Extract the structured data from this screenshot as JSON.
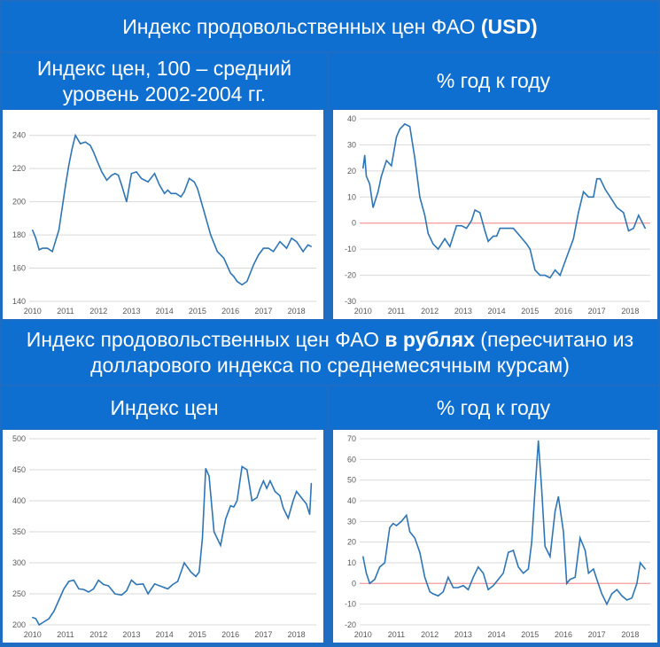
{
  "header": {
    "main_title_plain": "Индекс продовольственных цен ФАО ",
    "main_title_bold": "(USD)",
    "usd_left": "Индекс цен, 100 – средний уровень 2002-2004 гг.",
    "usd_right": "% год к году",
    "rub_title_part1": "Индекс продовольственных цен ФАО ",
    "rub_title_bold": "в рублях",
    "rub_title_part2": " (пересчитано из долларового индекса по среднемесячным курсам)",
    "rub_left": "Индекс цен",
    "rub_right": "% год к году"
  },
  "chart_data": [
    {
      "id": "usd-index",
      "type": "line",
      "x": [
        2010.0,
        2010.1,
        2010.2,
        2010.3,
        2010.45,
        2010.6,
        2010.8,
        2011.0,
        2011.1,
        2011.2,
        2011.3,
        2011.45,
        2011.6,
        2011.75,
        2011.85,
        2011.95,
        2012.1,
        2012.25,
        2012.4,
        2012.5,
        2012.6,
        2012.7,
        2012.85,
        2013.0,
        2013.15,
        2013.3,
        2013.5,
        2013.7,
        2013.85,
        2014.0,
        2014.1,
        2014.2,
        2014.35,
        2014.5,
        2014.6,
        2014.75,
        2014.9,
        2015.0,
        2015.2,
        2015.4,
        2015.6,
        2015.8,
        2016.0,
        2016.1,
        2016.2,
        2016.35,
        2016.5,
        2016.7,
        2016.85,
        2017.0,
        2017.15,
        2017.3,
        2017.5,
        2017.7,
        2017.85,
        2018.0,
        2018.2,
        2018.35,
        2018.45
      ],
      "values": [
        183,
        178,
        171,
        172,
        172,
        170,
        183,
        210,
        222,
        232,
        240,
        235,
        236,
        234,
        230,
        225,
        218,
        213,
        216,
        217,
        216,
        210,
        200,
        217,
        218,
        214,
        212,
        217,
        210,
        205,
        207,
        205,
        205,
        203,
        206,
        214,
        212,
        208,
        194,
        180,
        170,
        166,
        157,
        155,
        152,
        150,
        152,
        162,
        168,
        172,
        172,
        170,
        176,
        172,
        178,
        176,
        170,
        174,
        173
      ],
      "xlim": [
        2009.9,
        2018.6
      ],
      "ylim": [
        140,
        250
      ],
      "yticks": [
        140,
        160,
        180,
        200,
        220,
        240
      ],
      "xticks": [
        2010,
        2011,
        2012,
        2013,
        2014,
        2015,
        2016,
        2017,
        2018
      ]
    },
    {
      "id": "usd-yoy",
      "type": "line",
      "x": [
        2010.0,
        2010.05,
        2010.1,
        2010.2,
        2010.3,
        2010.45,
        2010.55,
        2010.7,
        2010.85,
        2011.0,
        2011.1,
        2011.25,
        2011.4,
        2011.55,
        2011.7,
        2011.85,
        2011.95,
        2012.1,
        2012.25,
        2012.45,
        2012.6,
        2012.8,
        2012.95,
        2013.1,
        2013.25,
        2013.35,
        2013.5,
        2013.65,
        2013.75,
        2013.9,
        2014.0,
        2014.1,
        2014.3,
        2014.5,
        2014.7,
        2014.9,
        2015.0,
        2015.15,
        2015.3,
        2015.45,
        2015.6,
        2015.75,
        2015.9,
        2016.1,
        2016.3,
        2016.45,
        2016.6,
        2016.75,
        2016.9,
        2017.0,
        2017.1,
        2017.25,
        2017.4,
        2017.6,
        2017.8,
        2017.95,
        2018.1,
        2018.25,
        2018.45
      ],
      "values": [
        21,
        26,
        18,
        15,
        6,
        12,
        18,
        24,
        22,
        33,
        36,
        38,
        37,
        25,
        10,
        3,
        -4,
        -8,
        -10,
        -6,
        -9,
        -1,
        -1,
        -2,
        1,
        5,
        4,
        -3,
        -7,
        -5,
        -5,
        -2,
        -2,
        -2,
        -5,
        -8,
        -10,
        -18,
        -20,
        -20,
        -21,
        -18,
        -20,
        -13,
        -6,
        4,
        12,
        10,
        10,
        17,
        17,
        13,
        10,
        6,
        4,
        -3,
        -2,
        3,
        -2
      ],
      "xlim": [
        2009.9,
        2018.6
      ],
      "ylim": [
        -30,
        40
      ],
      "yticks": [
        -30,
        -20,
        -10,
        0,
        10,
        20,
        30,
        40
      ],
      "xticks": [
        2010,
        2011,
        2012,
        2013,
        2014,
        2015,
        2016,
        2017,
        2018
      ]
    },
    {
      "id": "rub-index",
      "type": "line",
      "x": [
        2010.0,
        2010.1,
        2010.2,
        2010.35,
        2010.5,
        2010.65,
        2010.8,
        2010.95,
        2011.1,
        2011.25,
        2011.4,
        2011.55,
        2011.7,
        2011.85,
        2012.0,
        2012.15,
        2012.3,
        2012.5,
        2012.7,
        2012.85,
        2013.0,
        2013.15,
        2013.35,
        2013.5,
        2013.7,
        2013.9,
        2014.1,
        2014.25,
        2014.4,
        2014.6,
        2014.8,
        2014.95,
        2015.05,
        2015.15,
        2015.25,
        2015.35,
        2015.5,
        2015.7,
        2015.85,
        2016.0,
        2016.1,
        2016.2,
        2016.35,
        2016.5,
        2016.65,
        2016.8,
        2016.9,
        2017.0,
        2017.1,
        2017.2,
        2017.35,
        2017.5,
        2017.6,
        2017.75,
        2017.9,
        2018.0,
        2018.15,
        2018.3,
        2018.4,
        2018.45
      ],
      "values": [
        212,
        210,
        200,
        205,
        210,
        222,
        240,
        258,
        270,
        272,
        258,
        257,
        253,
        258,
        272,
        265,
        263,
        250,
        248,
        255,
        272,
        265,
        266,
        250,
        266,
        262,
        258,
        265,
        270,
        300,
        285,
        278,
        285,
        340,
        452,
        440,
        350,
        328,
        370,
        392,
        390,
        400,
        455,
        450,
        400,
        405,
        420,
        432,
        420,
        432,
        415,
        408,
        388,
        372,
        400,
        415,
        405,
        395,
        378,
        428
      ],
      "xlim": [
        2009.9,
        2018.6
      ],
      "ylim": [
        200,
        500
      ],
      "yticks": [
        200,
        250,
        300,
        350,
        400,
        450,
        500
      ],
      "xticks": [
        2010,
        2011,
        2012,
        2013,
        2014,
        2015,
        2016,
        2017,
        2018
      ]
    },
    {
      "id": "rub-yoy",
      "type": "line",
      "x": [
        2010.0,
        2010.1,
        2010.2,
        2010.35,
        2010.5,
        2010.65,
        2010.8,
        2010.9,
        2011.0,
        2011.15,
        2011.3,
        2011.4,
        2011.55,
        2011.7,
        2011.85,
        2012.0,
        2012.1,
        2012.25,
        2012.4,
        2012.55,
        2012.7,
        2012.85,
        2013.0,
        2013.15,
        2013.3,
        2013.45,
        2013.6,
        2013.75,
        2013.9,
        2014.05,
        2014.2,
        2014.35,
        2014.5,
        2014.65,
        2014.8,
        2014.95,
        2015.05,
        2015.15,
        2015.25,
        2015.35,
        2015.45,
        2015.6,
        2015.75,
        2015.85,
        2016.0,
        2016.1,
        2016.2,
        2016.35,
        2016.5,
        2016.65,
        2016.75,
        2016.9,
        2017.0,
        2017.15,
        2017.3,
        2017.45,
        2017.6,
        2017.75,
        2017.9,
        2018.05,
        2018.2,
        2018.3,
        2018.45
      ],
      "values": [
        13,
        5,
        0,
        2,
        8,
        10,
        27,
        29,
        28,
        30,
        33,
        25,
        22,
        15,
        3,
        -4,
        -5,
        -6,
        -4,
        3,
        -2,
        -2,
        -1,
        -3,
        3,
        8,
        5,
        -3,
        -1,
        2,
        5,
        15,
        16,
        8,
        5,
        7,
        20,
        45,
        69,
        45,
        18,
        13,
        35,
        42,
        25,
        0,
        2,
        3,
        22,
        16,
        5,
        7,
        2,
        -5,
        -10,
        -5,
        -3,
        -6,
        -8,
        -7,
        0,
        10,
        7
      ],
      "xlim": [
        2009.9,
        2018.6
      ],
      "ylim": [
        -20,
        70
      ],
      "yticks": [
        -20,
        -10,
        0,
        10,
        20,
        30,
        40,
        50,
        60,
        70
      ],
      "xticks": [
        2010,
        2011,
        2012,
        2013,
        2014,
        2015,
        2016,
        2017,
        2018
      ]
    }
  ]
}
